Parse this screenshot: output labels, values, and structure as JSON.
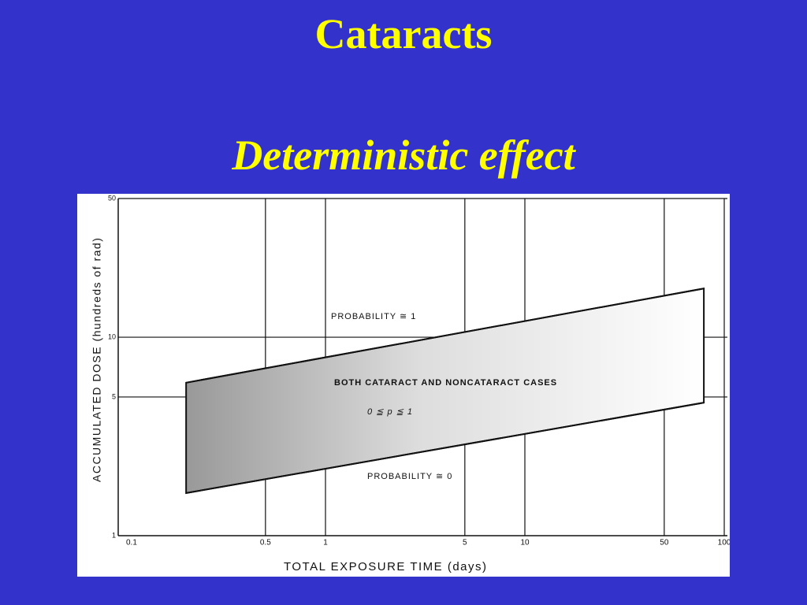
{
  "title": "Cataracts",
  "subtitle": "Deterministic effect",
  "chart_data": {
    "type": "band",
    "x_label": "TOTAL EXPOSURE TIME (days)",
    "y_label": "ACCUMULATED DOSE (hundreds of rad)",
    "x": [
      0.2,
      79
    ],
    "upper": [
      5.9,
      17.6
    ],
    "lower": [
      1.64,
      4.68
    ],
    "xlim": [
      0.1,
      100
    ],
    "ylim": [
      1,
      50
    ],
    "xscale": "log",
    "yscale": "log",
    "xticks": [
      0.1,
      0.5,
      1,
      5,
      10,
      50,
      100
    ],
    "yticks": [
      1,
      5,
      10,
      50
    ],
    "grid": true,
    "annotations": [
      "PROBABILITY ≅ 1",
      "BOTH CATARACT AND NONCATARACT CASES",
      "0 ≦ p ≦ 1",
      "PROBABILITY ≅ 0"
    ]
  }
}
